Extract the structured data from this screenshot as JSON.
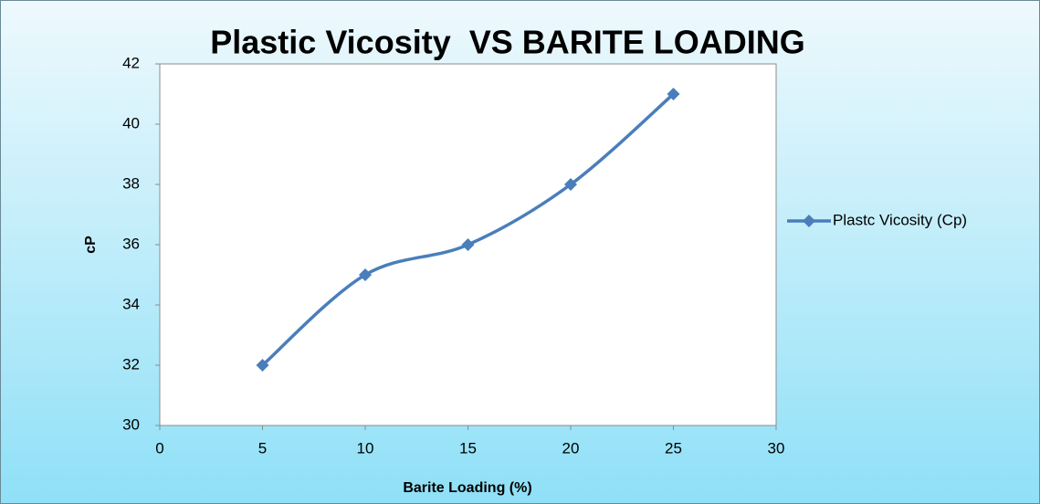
{
  "chart_data": {
    "type": "line",
    "title": "Plastic Vicosity  VS BARITE LOADING",
    "x_label": "Barite Loading (%)",
    "y_label": "cP",
    "x": [
      5,
      10,
      15,
      20,
      25
    ],
    "series": [
      {
        "name": "Plastc Vicosity (Cp)",
        "color": "#4a7ebb",
        "values": [
          32,
          35,
          36,
          38,
          41
        ]
      }
    ],
    "xlim": [
      0,
      30
    ],
    "xticks": [
      0,
      5,
      10,
      15,
      20,
      25,
      30
    ],
    "ylim": [
      30,
      42
    ],
    "yticks": [
      30,
      32,
      34,
      36,
      38,
      40,
      42
    ],
    "grid": false,
    "smooth": true,
    "legend": "right"
  }
}
